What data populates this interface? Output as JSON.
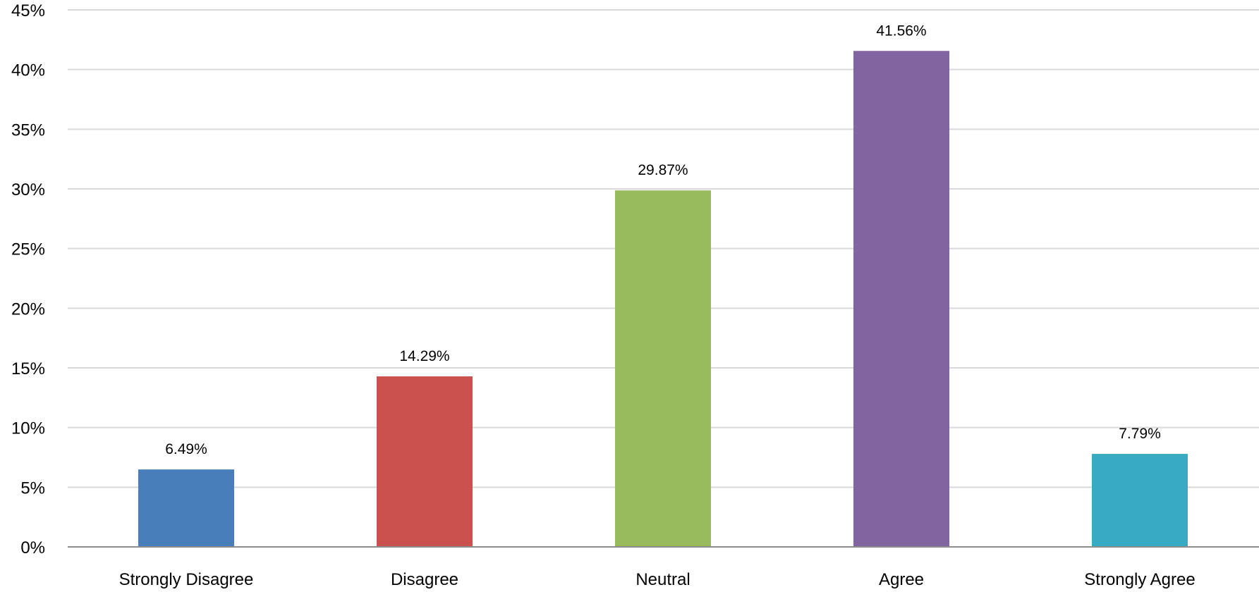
{
  "chart_data": {
    "type": "bar",
    "title": "",
    "xlabel": "",
    "ylabel": "",
    "categories": [
      "Strongly Disagree",
      "Disagree",
      "Neutral",
      "Agree",
      "Strongly Agree"
    ],
    "values": [
      6.49,
      14.29,
      29.87,
      41.56,
      7.79
    ],
    "data_labels": [
      "6.49%",
      "14.29%",
      "29.87%",
      "41.56%",
      "7.79%"
    ],
    "colors": [
      "#4a7ebb",
      "#c9514e",
      "#98b95c",
      "#8264a0",
      "#38aac3"
    ],
    "ylim": [
      0,
      45
    ],
    "yticks": [
      0,
      5,
      10,
      15,
      20,
      25,
      30,
      35,
      40,
      45
    ],
    "ytick_labels": [
      "0%",
      "5%",
      "10%",
      "15%",
      "20%",
      "25%",
      "30%",
      "35%",
      "40%",
      "45%"
    ],
    "grid": true,
    "legend": "none",
    "gridline_color": "#d9d9d9",
    "axis_color": "#8c8c8c"
  }
}
